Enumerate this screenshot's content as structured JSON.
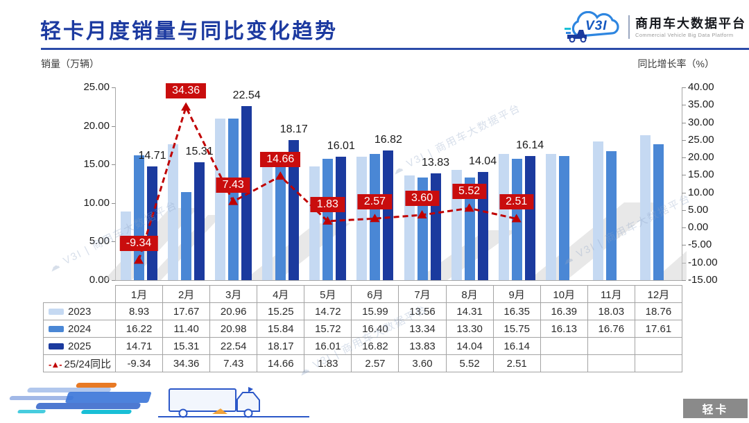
{
  "header": {
    "title": "轻卡月度销量与同比变化趋势",
    "logo": {
      "mark": "V3I",
      "platform_cn": "商用车大数据平台",
      "platform_en": "Commercial Vehicle Big Data Platform"
    }
  },
  "watermark": {
    "text": "商用车大数据平台"
  },
  "footer": {
    "badge": "轻卡"
  },
  "chart_data": {
    "type": "bar",
    "title": "轻卡月度销量与同比变化趋势",
    "categories": [
      "1月",
      "2月",
      "3月",
      "4月",
      "5月",
      "6月",
      "7月",
      "8月",
      "9月",
      "10月",
      "11月",
      "12月"
    ],
    "series": [
      {
        "name": "2023",
        "type": "bar",
        "color": "#c5d9f2",
        "values": [
          8.93,
          17.67,
          20.96,
          15.25,
          14.72,
          15.99,
          13.56,
          14.31,
          16.35,
          16.39,
          18.03,
          18.76
        ]
      },
      {
        "name": "2024",
        "type": "bar",
        "color": "#4a87d5",
        "values": [
          16.22,
          11.4,
          20.98,
          15.84,
          15.72,
          16.4,
          13.34,
          13.3,
          15.75,
          16.13,
          16.76,
          17.61
        ]
      },
      {
        "name": "2025",
        "type": "bar",
        "color": "#1b3a9e",
        "data_labels": true,
        "values": [
          14.71,
          15.31,
          22.54,
          18.17,
          16.01,
          16.82,
          13.83,
          14.04,
          16.14,
          null,
          null,
          null
        ]
      },
      {
        "name": "25/24同比",
        "type": "line",
        "axis": "right",
        "color": "#c00000",
        "marker": "triangle-up",
        "dashed": true,
        "data_labels": true,
        "values": [
          -9.34,
          34.36,
          7.43,
          14.66,
          1.83,
          2.57,
          3.6,
          5.52,
          2.51,
          null,
          null,
          null
        ]
      }
    ],
    "left_axis": {
      "title": "销量（万辆）",
      "min": 0,
      "max": 25,
      "step": 5
    },
    "right_axis": {
      "title": "同比增长率（%）",
      "min": -15,
      "max": 40,
      "step": 5
    },
    "grid": false,
    "legend_position": "data-table-left"
  }
}
